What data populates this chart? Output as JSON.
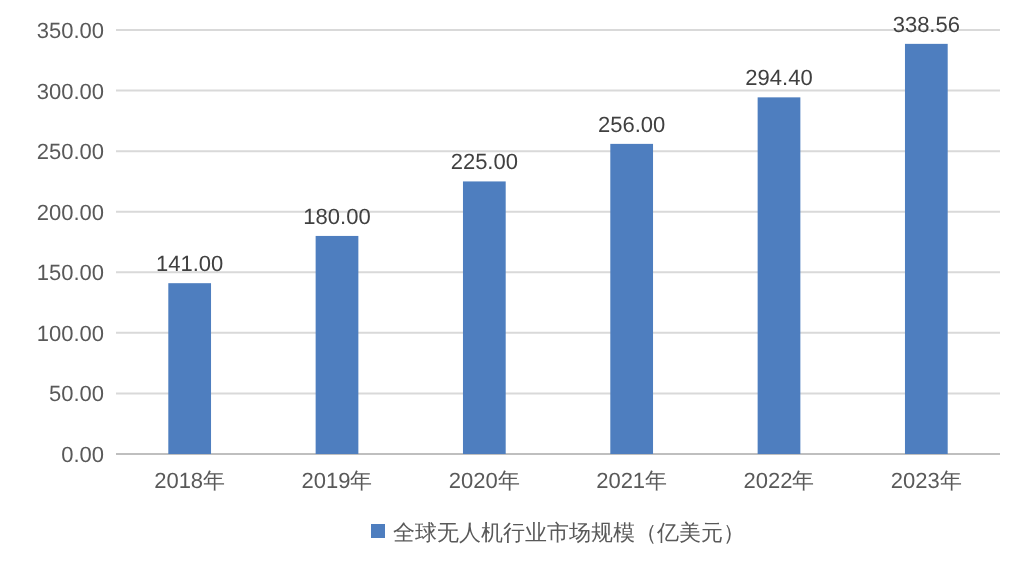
{
  "chart_data": {
    "type": "bar",
    "categories": [
      "2018年",
      "2019年",
      "2020年",
      "2021年",
      "2022年",
      "2023年"
    ],
    "series": [
      {
        "name": "全球无人机行业市场规模（亿美元）",
        "color": "#4e7ebf",
        "values": [
          141,
          180,
          225,
          256,
          294.4,
          338.56
        ],
        "value_labels": [
          "141.00",
          "180.00",
          "225.00",
          "256.00",
          "294.40",
          "338.56"
        ]
      }
    ],
    "ylim": [
      0,
      350
    ],
    "yticks": [
      {
        "value": 0,
        "label": "0.00"
      },
      {
        "value": 50,
        "label": "50.00"
      },
      {
        "value": 100,
        "label": "100.00"
      },
      {
        "value": 150,
        "label": "150.00"
      },
      {
        "value": 200,
        "label": "200.00"
      },
      {
        "value": 250,
        "label": "250.00"
      },
      {
        "value": 300,
        "label": "300.00"
      },
      {
        "value": 350,
        "label": "350.00"
      }
    ],
    "grid": "y",
    "legend": "bottom"
  }
}
